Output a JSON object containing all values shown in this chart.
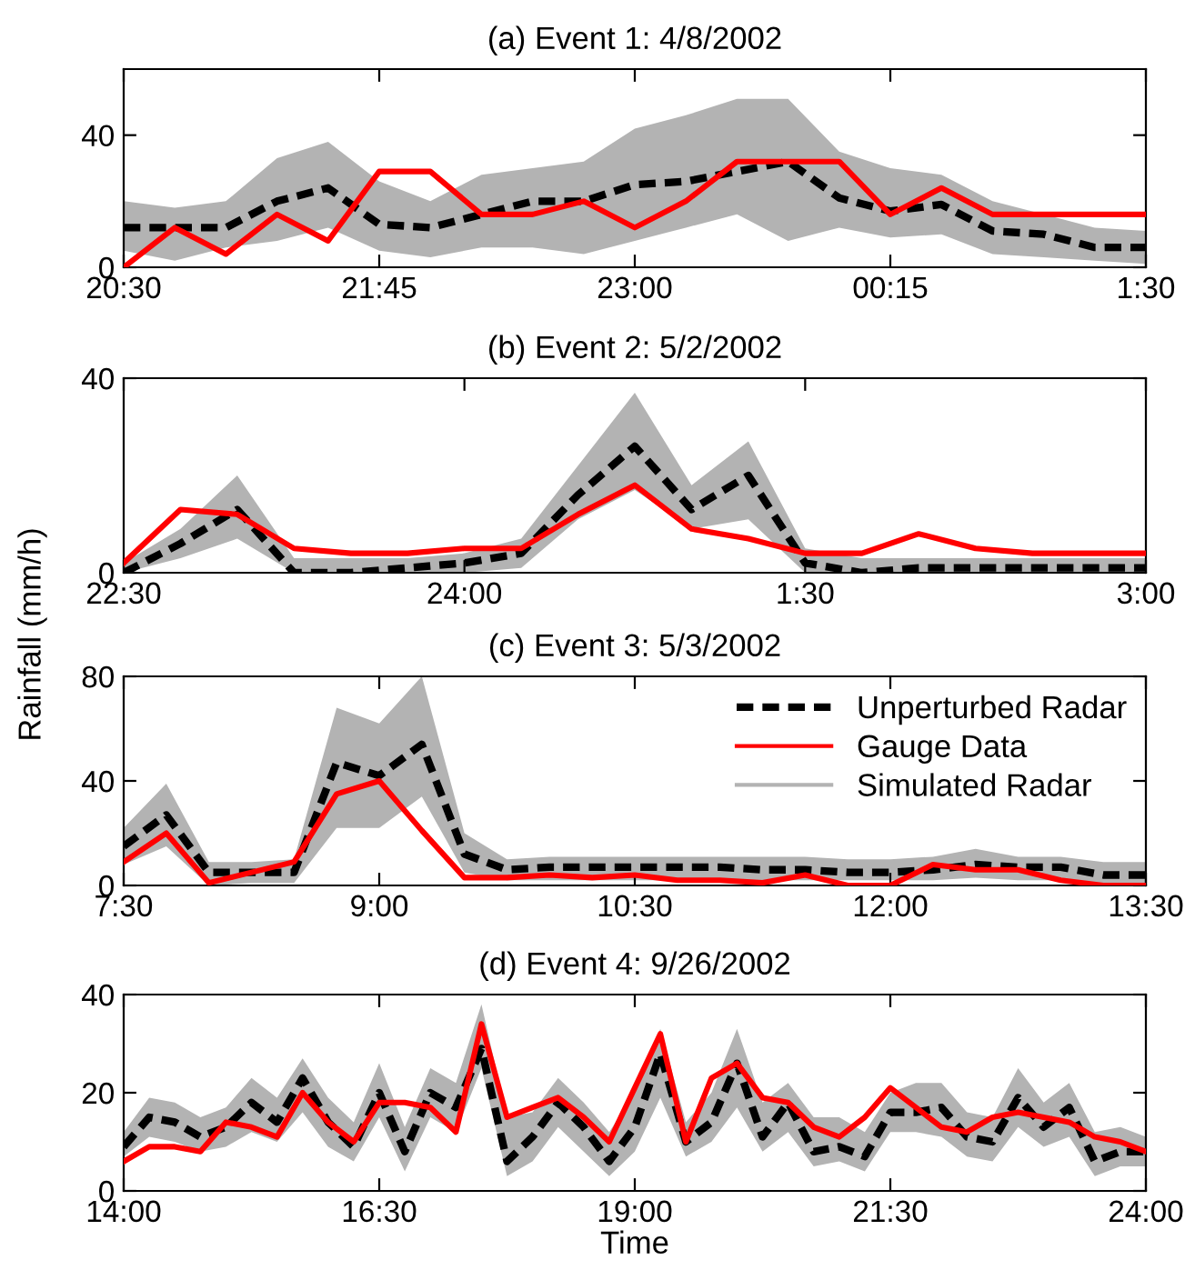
{
  "chart_data": [
    {
      "type": "line",
      "title": "(a) Event 1: 4/8/2002",
      "x": [
        "2002-04-08T20:30",
        "2002-04-08T20:45",
        "2002-04-08T21:00",
        "2002-04-08T21:15",
        "2002-04-08T21:30",
        "2002-04-08T21:45",
        "2002-04-08T22:00",
        "2002-04-08T22:15",
        "2002-04-08T22:30",
        "2002-04-08T22:45",
        "2002-04-08T23:00",
        "2002-04-08T23:15",
        "2002-04-08T23:30",
        "2002-04-08T23:45",
        "2002-04-09T00:00",
        "2002-04-09T00:15",
        "2002-04-09T00:30",
        "2002-04-09T00:45",
        "2002-04-09T01:00",
        "2002-04-09T01:15",
        "2002-04-09T01:30"
      ],
      "xlim": [
        "2002-04-08T20:30",
        "2002-04-09T01:30"
      ],
      "xticks": [
        {
          "value": "2002-04-08T20:30",
          "label": "20:30"
        },
        {
          "value": "2002-04-08T21:45",
          "label": "21:45"
        },
        {
          "value": "2002-04-08T23:00",
          "label": "23:00"
        },
        {
          "value": "2002-04-09T00:15",
          "label": "00:15"
        },
        {
          "value": "2002-04-09T01:30",
          "label": "1:30"
        }
      ],
      "ylim": [
        0,
        60
      ],
      "yticks": [
        0,
        40
      ],
      "grid": false,
      "legend": false,
      "series": [
        {
          "color": "#000000",
          "line_style": "dashed",
          "values": [
            12,
            12,
            12,
            20,
            24,
            13,
            12,
            16,
            20,
            20,
            25,
            26,
            29,
            32,
            21,
            17,
            19,
            11,
            10,
            6,
            6
          ]
        },
        {
          "color": "#ff0000",
          "line_style": "solid",
          "values": [
            0,
            12,
            4,
            16,
            8,
            29,
            29,
            16,
            16,
            20,
            12,
            20,
            32,
            32,
            32,
            16,
            24,
            16,
            16,
            16,
            16
          ]
        },
        {
          "color": "#b3b3b3",
          "type": "line",
          "values": [
            null,
            null,
            null,
            null,
            null,
            null,
            null,
            null,
            null,
            null,
            null,
            null,
            null,
            null,
            null,
            null,
            null,
            null,
            null,
            null,
            null
          ],
          "lower": [
            5,
            2,
            6,
            8,
            12,
            5,
            3,
            6,
            6,
            4,
            8,
            12,
            16,
            8,
            12,
            9,
            10,
            4,
            3,
            2,
            1
          ],
          "upper": [
            20,
            18,
            20,
            33,
            38,
            26,
            20,
            28,
            30,
            32,
            42,
            46,
            51,
            51,
            35,
            30,
            28,
            20,
            16,
            12,
            11
          ]
        }
      ]
    },
    {
      "type": "line",
      "title": "(b) Event 2: 5/2/2002",
      "x": [
        "2002-05-02T22:30",
        "2002-05-02T22:45",
        "2002-05-02T23:00",
        "2002-05-02T23:15",
        "2002-05-02T23:30",
        "2002-05-02T23:45",
        "2002-05-03T00:00",
        "2002-05-03T00:15",
        "2002-05-03T00:30",
        "2002-05-03T00:45",
        "2002-05-03T01:00",
        "2002-05-03T01:15",
        "2002-05-03T01:30",
        "2002-05-03T01:45",
        "2002-05-03T02:00",
        "2002-05-03T02:15",
        "2002-05-03T02:30",
        "2002-05-03T02:45",
        "2002-05-03T03:00"
      ],
      "xlim": [
        "2002-05-02T22:30",
        "2002-05-03T03:00"
      ],
      "xticks": [
        {
          "value": "2002-05-02T22:30",
          "label": "22:30"
        },
        {
          "value": "2002-05-03T00:00",
          "label": "24:00"
        },
        {
          "value": "2002-05-03T01:30",
          "label": "1:30"
        },
        {
          "value": "2002-05-03T03:00",
          "label": "3:00"
        }
      ],
      "ylim": [
        0,
        40
      ],
      "yticks": [
        0,
        40
      ],
      "grid": false,
      "legend": false,
      "series": [
        {
          "color": "#000000",
          "line_style": "dashed",
          "values": [
            0,
            6,
            13,
            0,
            0,
            1,
            2,
            4,
            16,
            26,
            13,
            20,
            2,
            0,
            1,
            1,
            1,
            1,
            1
          ]
        },
        {
          "color": "#ff0000",
          "line_style": "solid",
          "values": [
            2,
            13,
            12,
            5,
            4,
            4,
            5,
            5,
            12,
            18,
            9,
            7,
            4,
            4,
            8,
            5,
            4,
            4,
            4
          ]
        },
        {
          "color": "#b3b3b3",
          "type": "line",
          "values": [
            null,
            null,
            null,
            null,
            null,
            null,
            null,
            null,
            null,
            null,
            null,
            null,
            null,
            null,
            null,
            null,
            null,
            null,
            null
          ],
          "lower": [
            0,
            3,
            7,
            0,
            0,
            0,
            0,
            1,
            11,
            17,
            9,
            11,
            0,
            0,
            0,
            0,
            0,
            0,
            0
          ],
          "upper": [
            2,
            9,
            20,
            3,
            3,
            3,
            4,
            7,
            22,
            37,
            18,
            27,
            5,
            3,
            3,
            3,
            3,
            3,
            3
          ]
        }
      ]
    },
    {
      "type": "line",
      "title": "(c) Event 3: 5/3/2002",
      "ylabel": "Rainfall (mm/h)",
      "x": [
        7.5,
        7.75,
        8.0,
        8.25,
        8.5,
        8.75,
        9.0,
        9.25,
        9.5,
        9.75,
        10.0,
        10.25,
        10.5,
        10.75,
        11.0,
        11.25,
        11.5,
        11.75,
        12.0,
        12.25,
        12.5,
        12.75,
        13.0,
        13.25,
        13.5
      ],
      "xlim": [
        7.5,
        13.5
      ],
      "xticks": [
        {
          "value": 7.5,
          "label": "7:30"
        },
        {
          "value": 9.0,
          "label": "9:00"
        },
        {
          "value": 10.5,
          "label": "10:30"
        },
        {
          "value": 12.0,
          "label": "12:00"
        },
        {
          "value": 13.5,
          "label": "13:30"
        }
      ],
      "ylim": [
        0,
        80
      ],
      "yticks": [
        0,
        40,
        80
      ],
      "grid": false,
      "legend": "top right",
      "series": [
        {
          "name": "Unperturbed Radar",
          "color": "#000000",
          "line_style": "dashed",
          "values": [
            15,
            27,
            5,
            5,
            5,
            47,
            42,
            54,
            12,
            6,
            7,
            7,
            7,
            7,
            7,
            6,
            6,
            5,
            5,
            6,
            8,
            7,
            7,
            4,
            4
          ]
        },
        {
          "name": "Gauge Data",
          "color": "#ff0000",
          "line_style": "solid",
          "values": [
            9,
            20,
            1,
            5,
            9,
            35,
            40,
            21,
            3,
            3,
            4,
            3,
            4,
            2,
            2,
            1,
            4,
            0,
            0,
            8,
            6,
            6,
            2,
            0,
            0
          ]
        },
        {
          "name": "Simulated Radar",
          "color": "#b3b3b3",
          "type": "line",
          "values": [
            null,
            null,
            null,
            null,
            null,
            null,
            null,
            null,
            null,
            null,
            null,
            null,
            null,
            null,
            null,
            null,
            null,
            null,
            null,
            null,
            null,
            null,
            null,
            null,
            null
          ],
          "lower": [
            8,
            15,
            0,
            1,
            1,
            22,
            22,
            34,
            5,
            2,
            2,
            2,
            2,
            2,
            2,
            2,
            2,
            2,
            2,
            2,
            3,
            2,
            2,
            1,
            1
          ],
          "upper": [
            22,
            39,
            9,
            9,
            10,
            68,
            62,
            80,
            20,
            10,
            11,
            11,
            11,
            11,
            11,
            11,
            11,
            10,
            10,
            11,
            14,
            11,
            11,
            9,
            9
          ]
        }
      ]
    },
    {
      "type": "line",
      "title": "(d) Event 4: 9/26/2002",
      "xlabel": "Time",
      "x": [
        14.0,
        14.25,
        14.5,
        14.75,
        15.0,
        15.25,
        15.5,
        15.75,
        16.0,
        16.25,
        16.5,
        16.75,
        17.0,
        17.25,
        17.5,
        17.75,
        18.0,
        18.25,
        18.5,
        18.75,
        19.0,
        19.25,
        19.5,
        19.75,
        20.0,
        20.25,
        20.5,
        20.75,
        21.0,
        21.25,
        21.5,
        21.75,
        22.0,
        22.25,
        22.5,
        22.75,
        23.0,
        23.25,
        23.5,
        23.75,
        24.0
      ],
      "xlim": [
        14.0,
        24.0
      ],
      "xticks": [
        {
          "value": 14.0,
          "label": "14:00"
        },
        {
          "value": 16.5,
          "label": "16:30"
        },
        {
          "value": 19.0,
          "label": "19:00"
        },
        {
          "value": 21.5,
          "label": "21:30"
        },
        {
          "value": 24.0,
          "label": "24:00"
        }
      ],
      "ylim": [
        0,
        40
      ],
      "yticks": [
        0,
        20,
        40
      ],
      "grid": false,
      "legend": false,
      "series": [
        {
          "color": "#000000",
          "line_style": "dashed",
          "values": [
            9,
            15,
            14,
            11,
            13,
            18,
            14,
            23,
            14,
            9,
            20,
            8,
            20,
            17,
            29,
            6,
            11,
            18,
            13,
            6,
            13,
            28,
            10,
            14,
            26,
            11,
            18,
            8,
            9,
            7,
            16,
            16,
            17,
            11,
            10,
            19,
            13,
            17,
            6,
            8,
            8
          ]
        },
        {
          "color": "#ff0000",
          "line_style": "solid",
          "values": [
            6,
            9,
            9,
            8,
            14,
            13,
            11,
            20,
            14,
            10,
            18,
            18,
            17,
            12,
            34,
            15,
            17,
            19,
            15,
            10,
            21,
            32,
            10,
            23,
            26,
            19,
            18,
            13,
            11,
            15,
            21,
            17,
            13,
            12,
            15,
            16,
            15,
            14,
            11,
            10,
            8
          ]
        },
        {
          "color": "#b3b3b3",
          "type": "line",
          "values": [
            null,
            null,
            null,
            null,
            null,
            null,
            null,
            null,
            null,
            null,
            null,
            null,
            null,
            null,
            null,
            null,
            null,
            null,
            null,
            null,
            null,
            null,
            null,
            null,
            null,
            null,
            null,
            null,
            null,
            null,
            null,
            null,
            null,
            null,
            null,
            null,
            null,
            null,
            null,
            null,
            null
          ],
          "lower": [
            7,
            11,
            10,
            8,
            9,
            12,
            10,
            16,
            9,
            6,
            15,
            4,
            15,
            12,
            25,
            3,
            6,
            13,
            8,
            3,
            8,
            19,
            7,
            10,
            17,
            8,
            12,
            5,
            6,
            4,
            12,
            12,
            11,
            7,
            6,
            13,
            9,
            11,
            3,
            5,
            5
          ],
          "upper": [
            12,
            19,
            18,
            15,
            17,
            23,
            19,
            27,
            19,
            14,
            26,
            13,
            25,
            22,
            38,
            15,
            16,
            23,
            18,
            12,
            20,
            33,
            14,
            20,
            33,
            18,
            22,
            15,
            15,
            12,
            20,
            22,
            22,
            16,
            15,
            25,
            18,
            22,
            12,
            13,
            11
          ]
        }
      ]
    }
  ]
}
